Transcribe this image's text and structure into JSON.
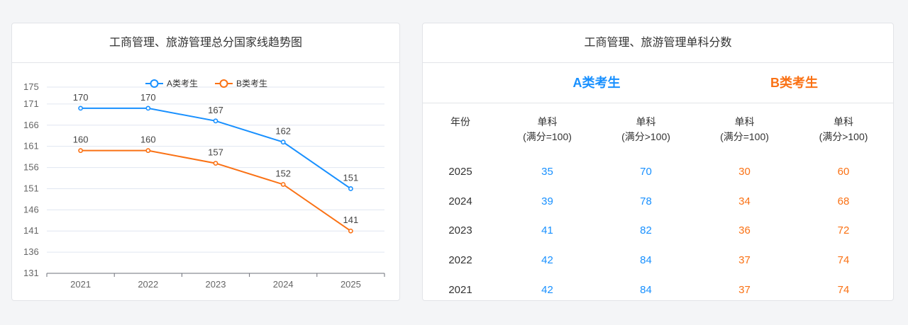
{
  "left_panel": {
    "title": "工商管理、旅游管理总分国家线趋势图"
  },
  "right_panel": {
    "title": "工商管理、旅游管理单科分数",
    "group_a": "A类考生",
    "group_b": "B类考生",
    "headers": {
      "year": "年份",
      "col1_line1": "单科",
      "col1_line2": "(满分=100)",
      "col2_line1": "单科",
      "col2_line2": "(满分>100)",
      "col3_line1": "单科",
      "col3_line2": "(满分=100)",
      "col4_line1": "单科",
      "col4_line2": "(满分>100)"
    },
    "rows": [
      {
        "year": "2025",
        "a100": "35",
        "a_gt100": "70",
        "b100": "30",
        "b_gt100": "60"
      },
      {
        "year": "2024",
        "a100": "39",
        "a_gt100": "78",
        "b100": "34",
        "b_gt100": "68"
      },
      {
        "year": "2023",
        "a100": "41",
        "a_gt100": "82",
        "b100": "36",
        "b_gt100": "72"
      },
      {
        "year": "2022",
        "a100": "42",
        "a_gt100": "84",
        "b100": "37",
        "b_gt100": "74"
      },
      {
        "year": "2021",
        "a100": "42",
        "a_gt100": "84",
        "b100": "37",
        "b_gt100": "74"
      }
    ]
  },
  "colors": {
    "a": "#1890ff",
    "b": "#fa7114"
  },
  "chart_data": {
    "type": "line",
    "title": "工商管理、旅游管理总分国家线趋势图",
    "categories": [
      "2021",
      "2022",
      "2023",
      "2024",
      "2025"
    ],
    "series": [
      {
        "name": "A类考生",
        "values": [
          170,
          170,
          167,
          162,
          151
        ]
      },
      {
        "name": "B类考生",
        "values": [
          160,
          160,
          157,
          152,
          141
        ]
      }
    ],
    "yticks": [
      131,
      136,
      141,
      146,
      151,
      156,
      161,
      166,
      171,
      175
    ],
    "ylim": [
      131,
      175
    ],
    "grid": true,
    "legend_position": "top-center"
  }
}
